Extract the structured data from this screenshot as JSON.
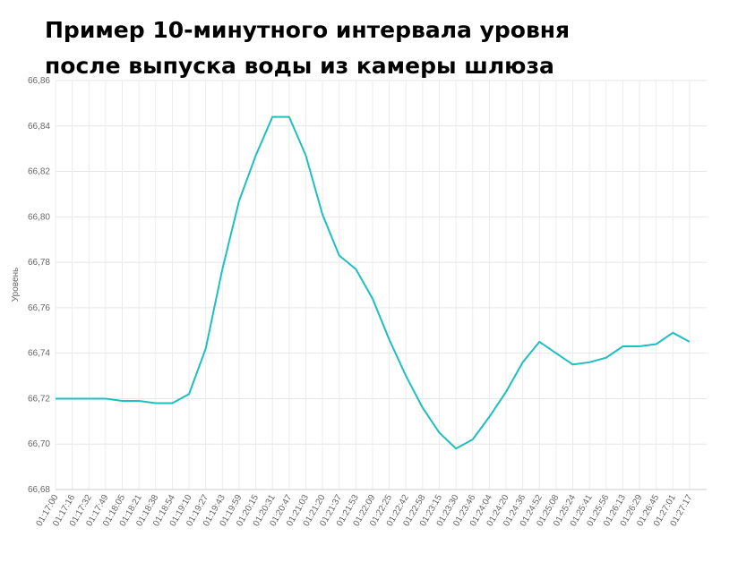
{
  "chart_data": {
    "type": "line",
    "title": "Пример 10-минутного интервала уровня после выпуска воды из камеры шлюза",
    "y_label": "Уровень",
    "categories": [
      "01:17:00",
      "01:17:16",
      "01:17:32",
      "01:17:49",
      "01:18:05",
      "01:18:21",
      "01:18:38",
      "01:18:54",
      "01:19:10",
      "01:19:27",
      "01:19:43",
      "01:19:59",
      "01:20:15",
      "01:20:31",
      "01:20:47",
      "01:21:03",
      "01:21:20",
      "01:21:37",
      "01:21:53",
      "01:22:09",
      "01:22:25",
      "01:22:42",
      "01:22:58",
      "01:23:15",
      "01:23:30",
      "01:23:46",
      "01:24:04",
      "01:24:20",
      "01:24:36",
      "01:24:52",
      "01:25:08",
      "01:25:24",
      "01:25:41",
      "01:25:56",
      "01:26:13",
      "01:26:29",
      "01:26:45",
      "01:27:01",
      "01:27:17"
    ],
    "series": [
      {
        "name": "Уровень",
        "color": "#1fbfbf",
        "values": [
          66.72,
          66.72,
          66.72,
          66.72,
          66.719,
          66.719,
          66.718,
          66.718,
          66.722,
          66.742,
          66.777,
          66.807,
          66.827,
          66.844,
          66.844,
          66.827,
          66.801,
          66.783,
          66.777,
          66.764,
          66.746,
          66.73,
          66.716,
          66.705,
          66.698,
          66.702,
          66.712,
          66.723,
          66.736,
          66.745,
          66.74,
          66.735,
          66.736,
          66.738,
          66.743,
          66.743,
          66.744,
          66.749,
          66.745
        ]
      }
    ],
    "ylim": [
      66.68,
      66.86
    ],
    "yticks": [
      {
        "value": 66.68,
        "label": "66,68"
      },
      {
        "value": 66.7,
        "label": "66,70"
      },
      {
        "value": 66.72,
        "label": "66,72"
      },
      {
        "value": 66.74,
        "label": "66,74"
      },
      {
        "value": 66.76,
        "label": "66,76"
      },
      {
        "value": 66.78,
        "label": "66,78"
      },
      {
        "value": 66.8,
        "label": "66,80"
      },
      {
        "value": 66.82,
        "label": "66,82"
      },
      {
        "value": 66.84,
        "label": "66,84"
      },
      {
        "value": 66.86,
        "label": "66,86"
      }
    ],
    "grid": true
  }
}
